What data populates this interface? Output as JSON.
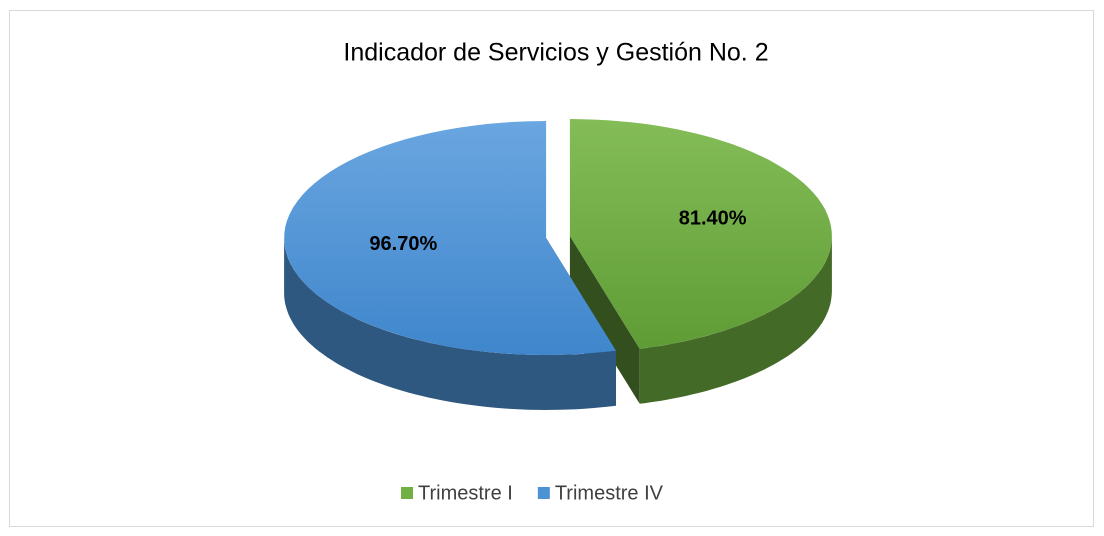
{
  "chart_data": {
    "type": "pie",
    "title": "Indicador de Servicios y Gestión No. 2",
    "categories": [
      "Trimestre I",
      "Trimestre IV"
    ],
    "values": [
      81.4,
      96.7
    ],
    "value_labels": [
      "81.40%",
      "96.70%"
    ],
    "colors": [
      "#72b043",
      "#4e92d6"
    ],
    "legend": "bottom"
  }
}
